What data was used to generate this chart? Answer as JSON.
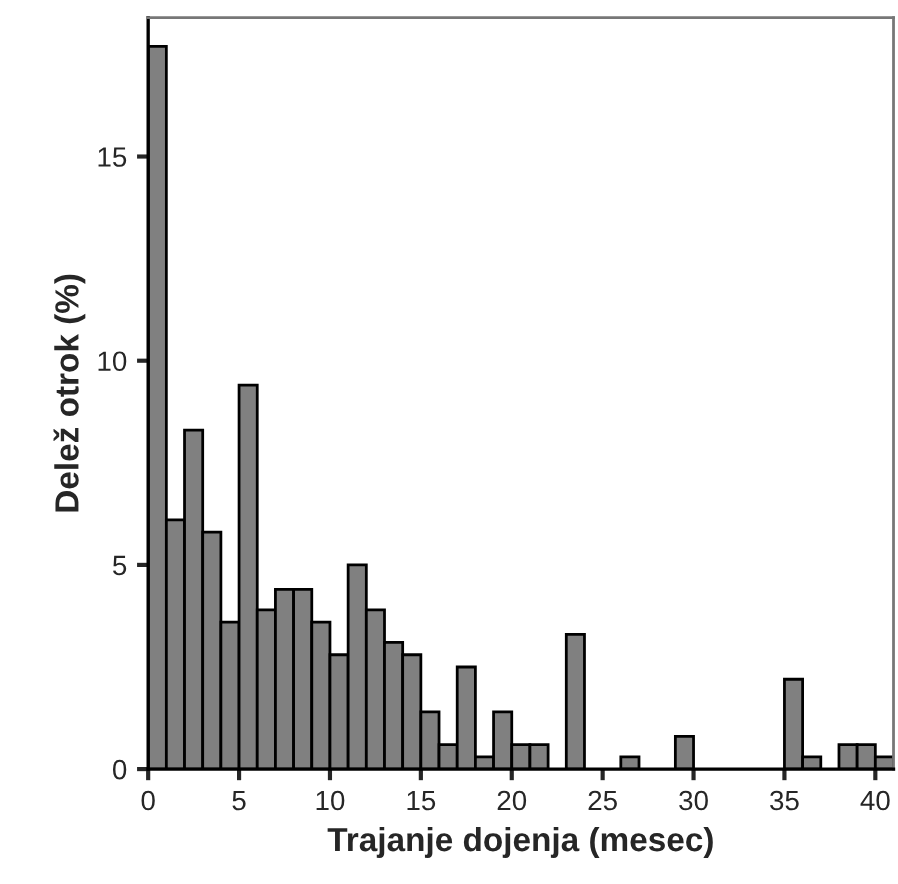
{
  "chart_data": {
    "type": "histogram",
    "xlabel": "Trajanje dojenja (mesec)",
    "ylabel": "Delež otrok (%)",
    "bins": [
      0,
      1,
      2,
      3,
      4,
      5,
      6,
      7,
      8,
      9,
      10,
      11,
      12,
      13,
      14,
      15,
      16,
      17,
      18,
      19,
      20,
      21,
      22,
      23,
      24,
      25,
      26,
      27,
      28,
      29,
      30,
      31,
      32,
      33,
      34,
      35,
      36,
      37,
      38,
      39,
      40,
      41
    ],
    "values": [
      17.7,
      6.1,
      8.3,
      5.8,
      3.6,
      9.4,
      3.9,
      4.4,
      4.4,
      3.6,
      2.8,
      5.0,
      3.9,
      3.1,
      2.8,
      1.4,
      0.6,
      2.5,
      0.3,
      1.4,
      0.6,
      0.6,
      0,
      3.3,
      0,
      0,
      0.3,
      0,
      0,
      0.8,
      0,
      0,
      0,
      0,
      0,
      2.2,
      0.3,
      0,
      0.6,
      0.6,
      0.3
    ],
    "color": "#808080",
    "xlim": [
      0,
      41
    ],
    "xticks": [
      0,
      5,
      10,
      15,
      20,
      25,
      30,
      35,
      40
    ],
    "ylim": [
      0,
      18.4
    ],
    "yticks": [
      0,
      5,
      10,
      15
    ],
    "grid": false
  }
}
